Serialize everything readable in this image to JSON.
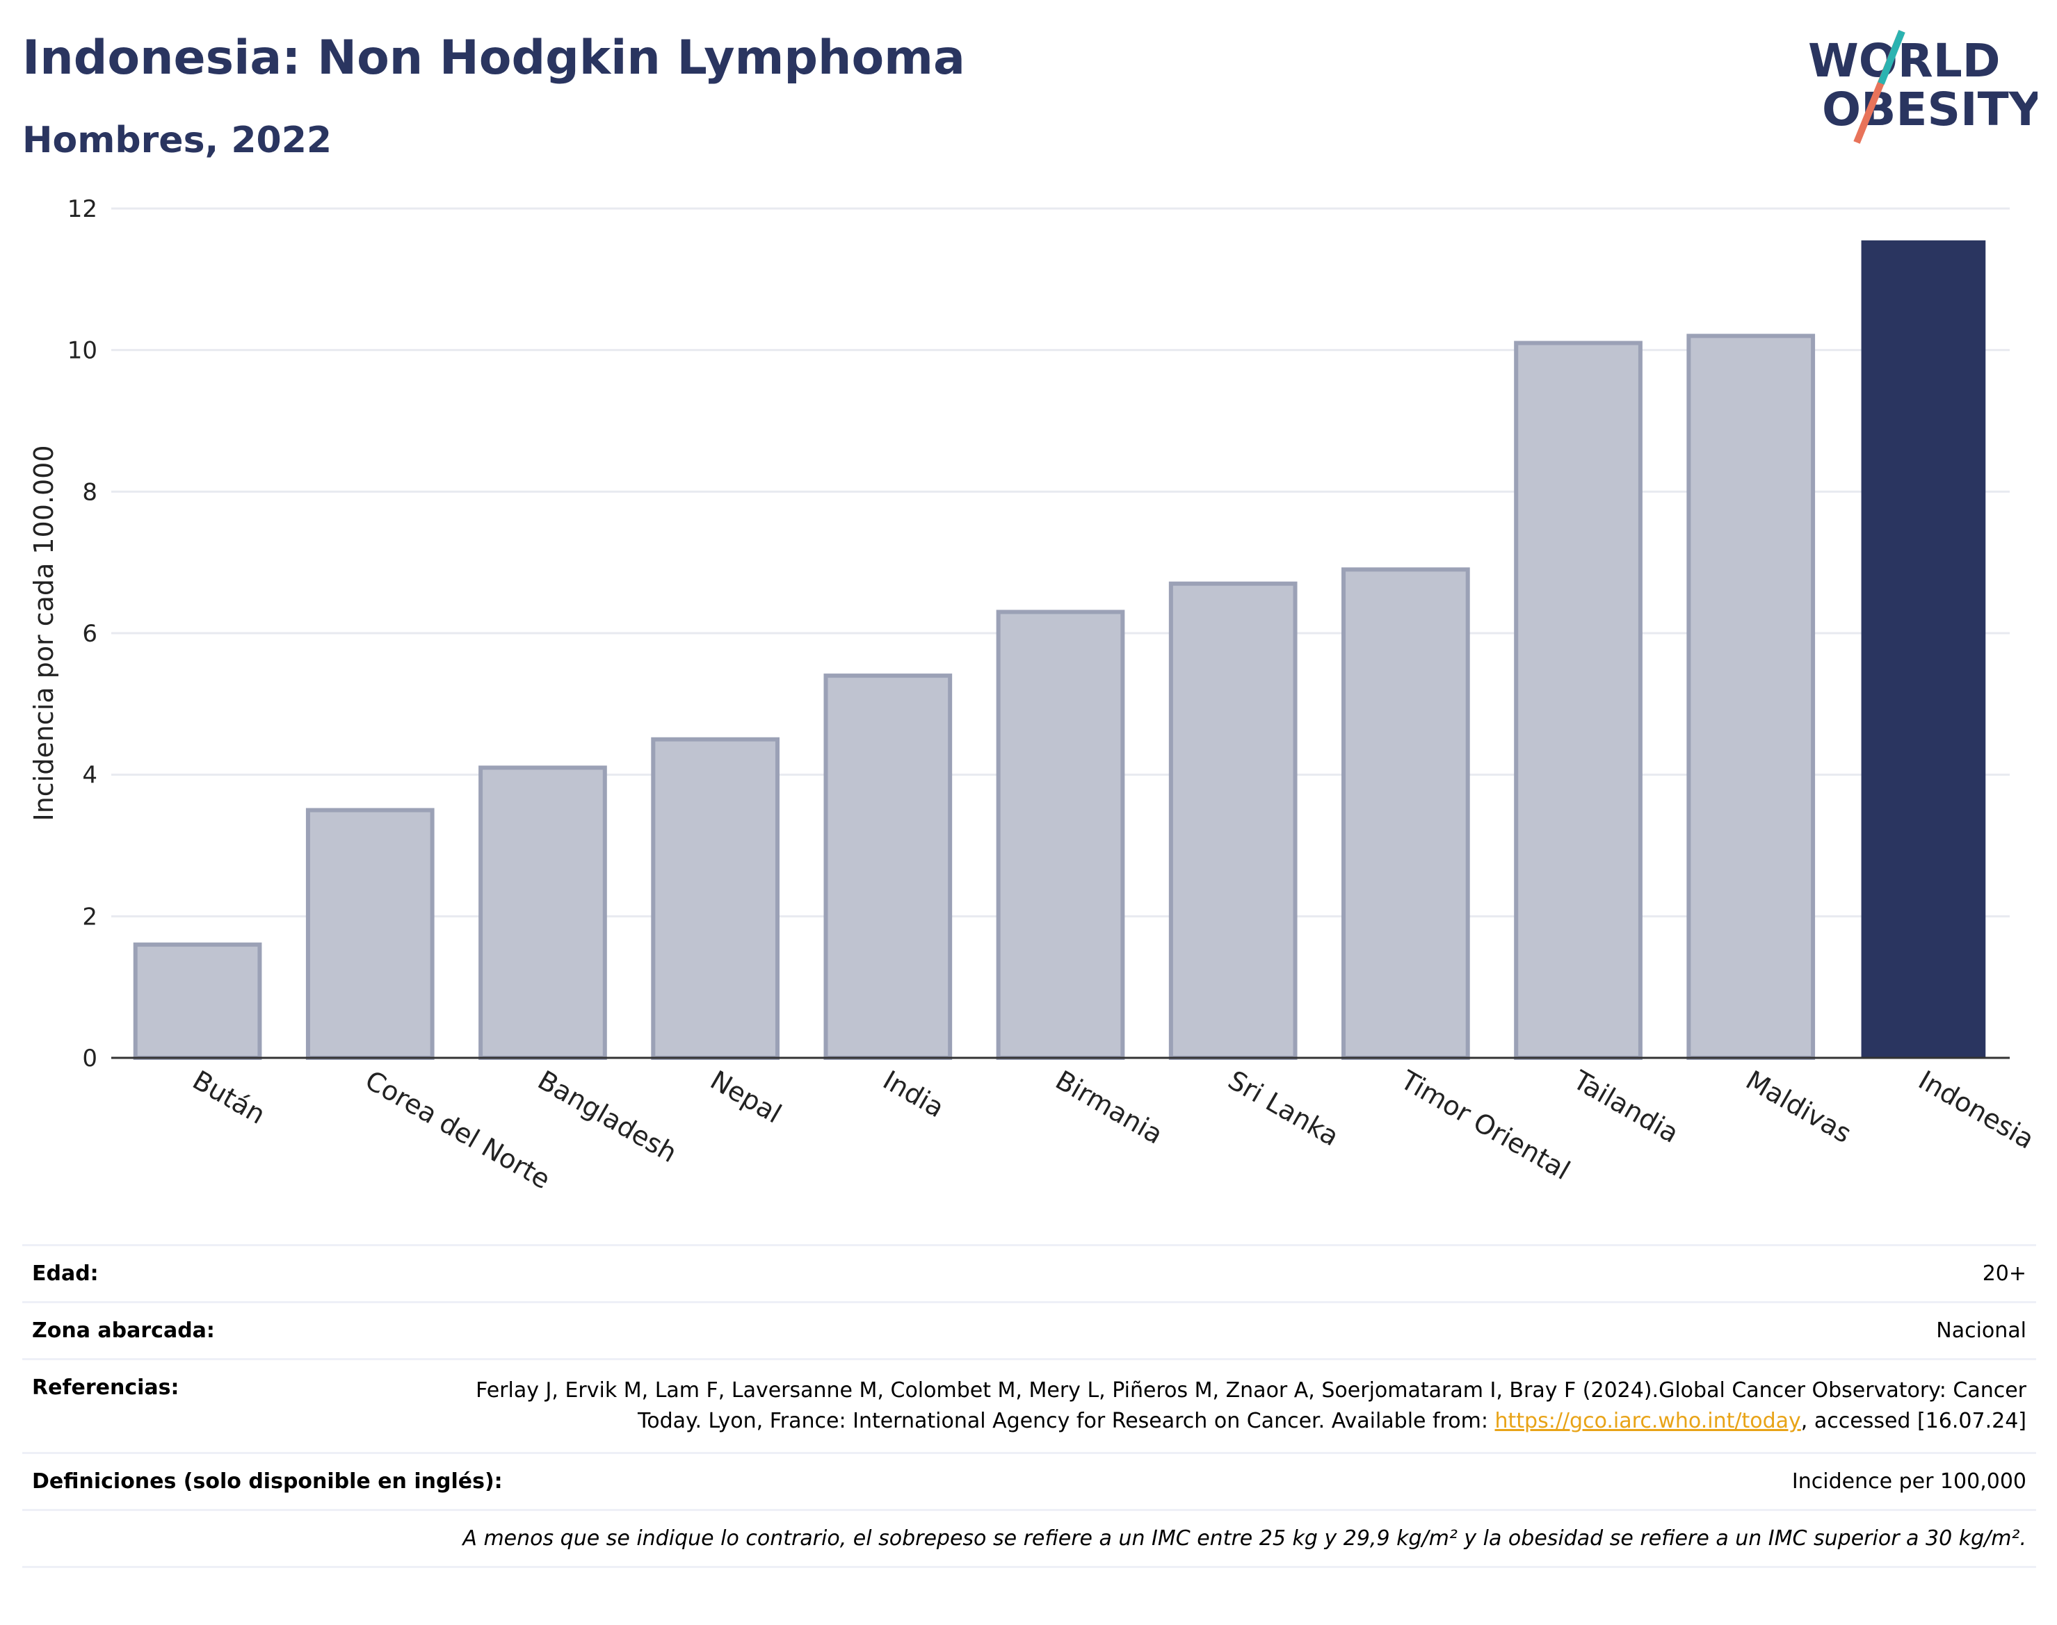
{
  "header": {
    "title": "Indonesia: Non Hodgkin Lymphoma",
    "subtitle": "Hombres, 2022"
  },
  "logo": {
    "line1": "WORLD",
    "line2": "OBESITY"
  },
  "colors": {
    "bar": "#2a3560",
    "bar_muted": "#bfc3d0",
    "bar_muted_stroke": "#9ba1b6",
    "accent_teal": "#2bb3b1",
    "accent_coral": "#e8735a"
  },
  "chart_data": {
    "type": "bar",
    "categories": [
      "Bután",
      "Corea del Norte",
      "Bangladesh",
      "Nepal",
      "India",
      "Birmania",
      "Sri Lanka",
      "Timor Oriental",
      "Tailandia",
      "Maldivas",
      "Indonesia"
    ],
    "values": [
      1.6,
      3.5,
      4.1,
      4.5,
      5.4,
      6.3,
      6.7,
      6.9,
      10.1,
      10.2,
      11.55
    ],
    "highlight": "Indonesia",
    "ylabel": "Incidencia por cada 100.000",
    "ylim": [
      0,
      12
    ],
    "yticks": [
      0,
      2,
      4,
      6,
      8,
      10,
      12
    ],
    "grid": true
  },
  "info": {
    "age_label": "Edad:",
    "age_value": "20+",
    "area_label": "Zona abarcada:",
    "area_value": "Nacional",
    "ref_label": "Referencias:",
    "ref_text_1": "Ferlay J, Ervik M, Lam F, Laversanne M, Colombet M, Mery L, Piñeros M, Znaor A, Soerjomataram I, Bray F (2024).Global Cancer Observatory: Cancer Today. Lyon, France: International Agency for Research on Cancer. Available from: ",
    "ref_link": "https://gco.iarc.who.int/today",
    "ref_text_2": ", accessed [16.07.24]",
    "def_label": "Definiciones (solo disponible en inglés):",
    "def_value": "Incidence per 100,000",
    "note": "A menos que se indique lo contrario, el sobrepeso se refiere a un IMC entre 25 kg y 29,9 kg/m² y la obesidad se refiere a un IMC superior a 30 kg/m²."
  }
}
